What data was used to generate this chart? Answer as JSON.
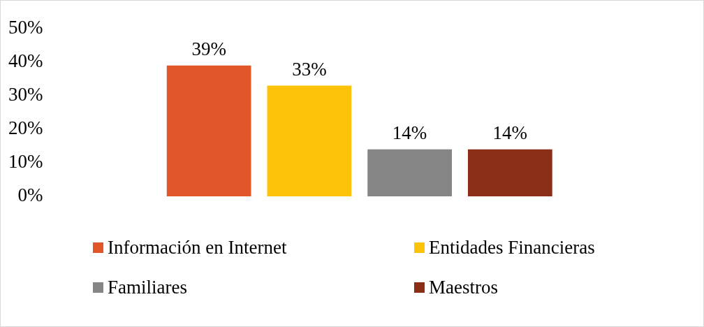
{
  "chart_data": {
    "type": "bar",
    "categories": [
      null
    ],
    "series": [
      {
        "name": "Información en Internet",
        "color": "#e05628",
        "values": [
          39
        ],
        "value_labels": [
          "39%"
        ]
      },
      {
        "name": "Entidades Financieras",
        "color": "#fdc20a",
        "values": [
          33
        ],
        "value_labels": [
          "33%"
        ]
      },
      {
        "name": "Familiares",
        "color": "#858585",
        "values": [
          14
        ],
        "value_labels": [
          "14%"
        ]
      },
      {
        "name": "Maestros",
        "color": "#8b2e16",
        "values": [
          14
        ],
        "value_labels": [
          "14%"
        ]
      }
    ],
    "ylim": [
      0,
      50
    ],
    "yticks": [
      {
        "value": 0,
        "label": "0%"
      },
      {
        "value": 10,
        "label": "10%"
      },
      {
        "value": 20,
        "label": "20%"
      },
      {
        "value": 30,
        "label": "30%"
      },
      {
        "value": 40,
        "label": "40%"
      },
      {
        "value": 50,
        "label": "50%"
      }
    ],
    "legend": "bottom"
  }
}
